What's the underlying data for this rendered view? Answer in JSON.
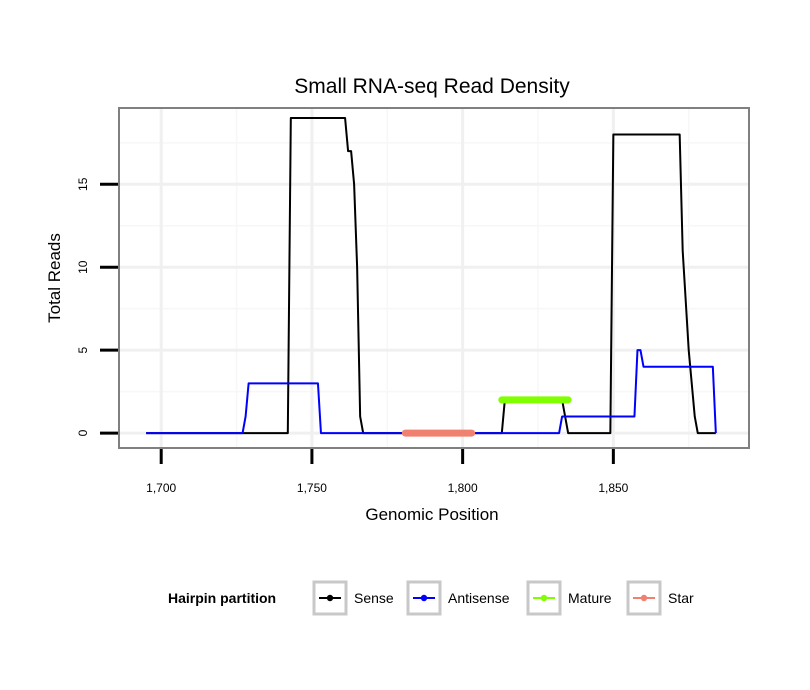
{
  "chart_data": {
    "type": "line",
    "title": "Small RNA-seq Read Density",
    "xlabel": "Genomic Position",
    "ylabel": "Total Reads",
    "xlim": [
      1686,
      1895
    ],
    "ylim": [
      -0.9,
      19.6
    ],
    "x_ticks": [
      {
        "value": 1700,
        "label": "1,700"
      },
      {
        "value": 1750,
        "label": "1,750"
      },
      {
        "value": 1800,
        "label": "1,800"
      },
      {
        "value": 1850,
        "label": "1,850"
      }
    ],
    "y_ticks": [
      {
        "value": 0,
        "label": "0"
      },
      {
        "value": 5,
        "label": "5"
      },
      {
        "value": 10,
        "label": "10"
      },
      {
        "value": 15,
        "label": "15"
      }
    ],
    "grid": true,
    "legend": {
      "title": "Hairpin partition",
      "position": "bottom",
      "entries": [
        "Sense",
        "Antisense",
        "Mature",
        "Star"
      ]
    },
    "series": [
      {
        "name": "Sense",
        "color": "#000000",
        "x": [
          1695,
          1742,
          1743,
          1761,
          1762,
          1763,
          1764,
          1765,
          1766,
          1767,
          1813,
          1814,
          1833,
          1834,
          1835,
          1849,
          1850,
          1872,
          1873,
          1874,
          1875,
          1876,
          1877,
          1878,
          1884
        ],
        "values": [
          0,
          0,
          19,
          19,
          17,
          17,
          15,
          10,
          1,
          0,
          0,
          2,
          2,
          1,
          0,
          0,
          18,
          18,
          11,
          8,
          5,
          3,
          1,
          0,
          0
        ]
      },
      {
        "name": "Antisense",
        "color": "#0000ff",
        "x": [
          1695,
          1727,
          1728,
          1729,
          1752,
          1753,
          1832,
          1833,
          1857,
          1858,
          1859,
          1860,
          1883,
          1884
        ],
        "values": [
          0,
          0,
          1,
          3,
          3,
          0,
          0,
          1,
          1,
          5,
          5,
          4,
          4,
          0
        ]
      },
      {
        "name": "Mature",
        "color": "#7fff00",
        "x": [
          1813,
          1835
        ],
        "values": [
          2,
          2
        ]
      },
      {
        "name": "Star",
        "color": "#f08070",
        "x": [
          1781,
          1803
        ],
        "values": [
          0,
          0
        ]
      }
    ]
  }
}
